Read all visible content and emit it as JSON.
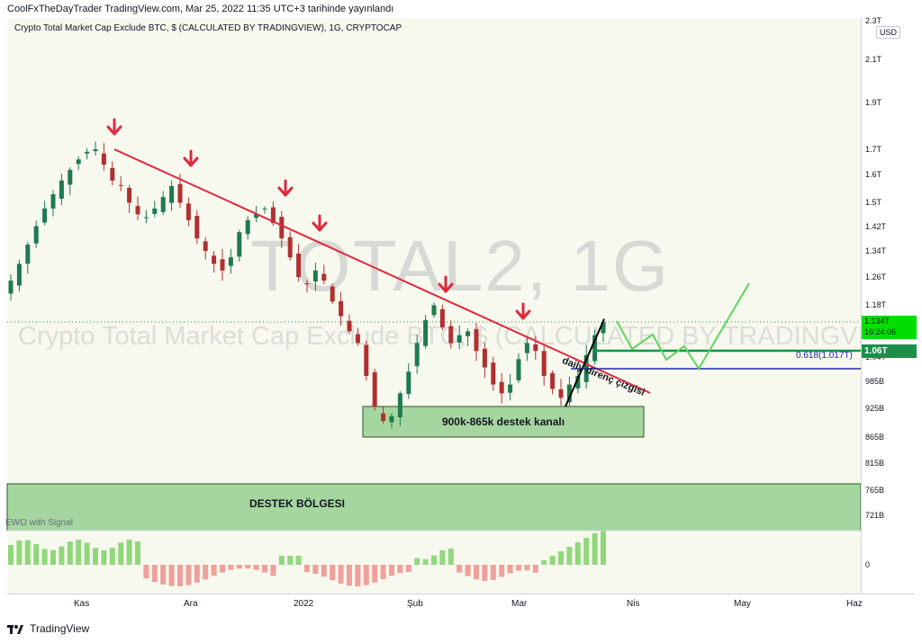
{
  "header": {
    "publisher_line": "CoolFxTheDayTrader TradingView.com, Mar 25, 2022 11:35 UTC+3 tarihinde yayınlandı"
  },
  "series_title": "Crypto Total Market Cap Exclude BTC, $ (CALCULATED BY TRADINGVIEW), 1G, CRYPTOCAP",
  "watermark": {
    "symbol": "TOTAL2, 1G",
    "description": "Crypto Total Market Cap Exclude BTC, $ (CALCULATED BY TRADINGVIEW)"
  },
  "price_scale": {
    "currency": "USD",
    "ticks": [
      "2.3T",
      "2.1T",
      "1.9T",
      "1.7T",
      "1.6T",
      "1.5T",
      "1.42T",
      "1.34T",
      "1.26T",
      "1.18T",
      "1.04T",
      "985B",
      "925B",
      "865B",
      "815B",
      "765B",
      "721B",
      "0"
    ],
    "current_price": "1.134T",
    "countdown": "16:24:06",
    "level_badge": "1.06T"
  },
  "time_scale": {
    "labels": [
      "Kas",
      "Ara",
      "2022",
      "Şub",
      "Mar",
      "Nis",
      "May",
      "Haz"
    ]
  },
  "annotations": {
    "trendline_label": "daily direnç çizgisi",
    "channel_label": "900k-865k destek kanalı",
    "zone_label": "DESTEK BÖLGESI",
    "fib_label": "0.618(1.017T)"
  },
  "indicator": {
    "name": "EWO with Signal"
  },
  "footer": {
    "brand": "TradingView"
  },
  "colors": {
    "background": "#f7f8ee",
    "candle_up": "#1f7a4f",
    "candle_down": "#b03030",
    "trendline": "#e0283c",
    "arrows": "#e0283c",
    "support_zone": "#a5d6a0",
    "level_line": "#1b8f4a",
    "fib_line": "#2228a8",
    "projection": "#5bd65b",
    "ewo_positive": "#8fd87a",
    "ewo_negative": "#f0a09a"
  },
  "chart_data": {
    "type": "candlestick",
    "title": "Crypto Total Market Cap Exclude BTC, $ (CALCULATED BY TRADINGVIEW), 1G, CRYPTOCAP",
    "x_axis_ticks": [
      "Kas",
      "Ara",
      "2022",
      "Şub",
      "Mar",
      "Nis",
      "May",
      "Haz"
    ],
    "y_axis_scale": "log",
    "y_axis_ticks": [
      "2.3T",
      "2.1T",
      "1.9T",
      "1.7T",
      "1.6T",
      "1.5T",
      "1.42T",
      "1.34T",
      "1.26T",
      "1.18T",
      "1.04T",
      "985B",
      "925B",
      "865B",
      "815B",
      "765B",
      "721B"
    ],
    "close_path_billions": [
      1250,
      1300,
      1360,
      1420,
      1480,
      1530,
      1580,
      1620,
      1660,
      1690,
      1700,
      1640,
      1580,
      1560,
      1500,
      1460,
      1450,
      1480,
      1520,
      1560,
      1500,
      1440,
      1380,
      1340,
      1300,
      1280,
      1320,
      1400,
      1440,
      1460,
      1480,
      1430,
      1380,
      1320,
      1260,
      1240,
      1280,
      1250,
      1190,
      1150,
      1110,
      1080,
      1000,
      930,
      900,
      910,
      960,
      1010,
      1080,
      1140,
      1180,
      1120,
      1080,
      1100,
      1110,
      1060,
      1020,
      980,
      960,
      980,
      1040,
      1080,
      1060,
      1000,
      970,
      950,
      980,
      1000,
      1050,
      1100,
      1134
    ],
    "resistance_trendline": "descending, from Nov high to breakout in late March",
    "support_channel_billions": [
      865,
      900
    ],
    "support_zone_billions": [
      715,
      780
    ],
    "key_level": "1.06T",
    "fib_level": {
      "ratio": 0.618,
      "value": "1.017T"
    },
    "projection": "zigzag up from 1.134T toward ~1.26T"
  }
}
